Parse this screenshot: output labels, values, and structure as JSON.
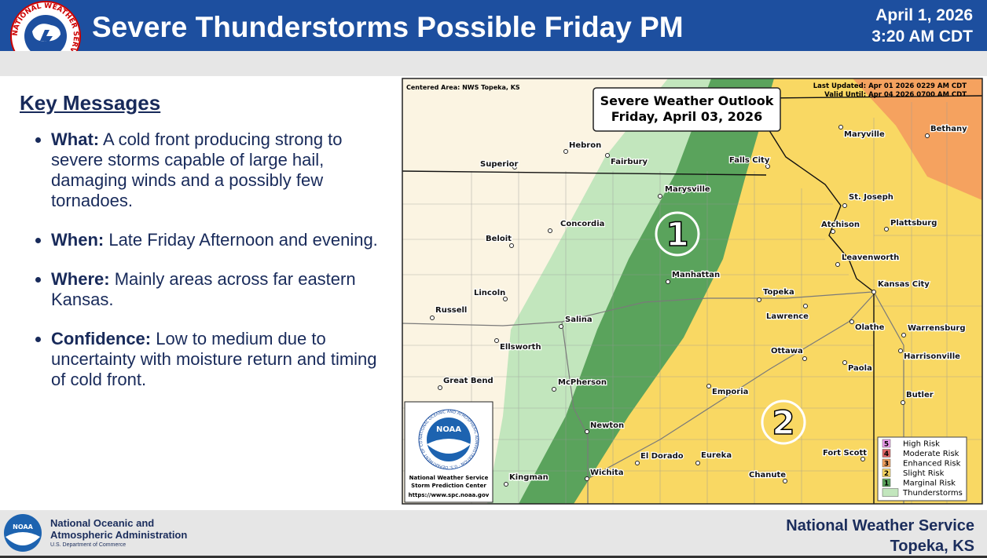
{
  "header": {
    "title": "Severe Thunderstorms Possible Friday PM",
    "date": "April 1, 2026",
    "time": "3:20 AM CDT",
    "logo_text": "NATIONAL WEATHER SERVICE"
  },
  "key_messages": {
    "heading": "Key Messages",
    "items": [
      {
        "label": "What:",
        "text": "A cold front producing strong to severe storms capable of large hail, damaging winds and a possibly few tornadoes."
      },
      {
        "label": "When:",
        "text": "Late Friday Afternoon and evening."
      },
      {
        "label": "Where:",
        "text": "Mainly areas across far eastern Kansas."
      },
      {
        "label": "Confidence:",
        "text": "Low to medium due to uncertainty with moisture return and timing of cold front."
      }
    ]
  },
  "map": {
    "centered_area": "Centered Area: NWS Topeka, KS",
    "last_updated": "Last Updated: Apr 01 2026 0229 AM CDT",
    "valid_until": "Valid Until: Apr 04 2026 0700 AM CDT",
    "outlook_title": "Severe Weather Outlook",
    "outlook_date": "Friday, April 03, 2026",
    "cities": [
      "Hebron",
      "Fairbury",
      "Superior",
      "Marysville",
      "Falls City",
      "Maryville",
      "Bethany",
      "St. Joseph",
      "Atchison",
      "Plattsburg",
      "Concordia",
      "Beloit",
      "Leavenworth",
      "Manhattan",
      "Kansas City",
      "Topeka",
      "Lincoln",
      "Russell",
      "Lawrence",
      "Salina",
      "Olathe",
      "Warrensburg",
      "Ellsworth",
      "Ottawa",
      "Harrisonville",
      "Paola",
      "Great Bend",
      "McPherson",
      "Emporia",
      "Butler",
      "Newton",
      "El Dorado",
      "Eureka",
      "Fort Scott",
      "Kingman",
      "Wichita",
      "Chanute"
    ],
    "risk_markers": [
      1,
      2
    ],
    "legend": [
      {
        "level": 5,
        "label": "High Risk"
      },
      {
        "level": 4,
        "label": "Moderate Risk"
      },
      {
        "level": 3,
        "label": "Enhanced Risk"
      },
      {
        "level": 2,
        "label": "Slight Risk"
      },
      {
        "level": 1,
        "label": "Marginal Risk"
      },
      {
        "label": "Thunderstorms"
      }
    ],
    "noaa_box": {
      "logo": "NOAA",
      "ring": "NATIONAL OCEANIC AND ATMOSPHERIC ADMINISTRATION · U.S. DEPARTMENT OF COMMERCE",
      "line1": "National Weather Service",
      "line2": "Storm Prediction Center",
      "url": "https://www.spc.noaa.gov"
    }
  },
  "footer": {
    "logo": "NOAA",
    "org_line1": "National Oceanic and",
    "org_line2": "Atmospheric Administration",
    "dept": "U.S. Department of Commerce",
    "office": "National Weather Service",
    "location": "Topeka, KS"
  }
}
